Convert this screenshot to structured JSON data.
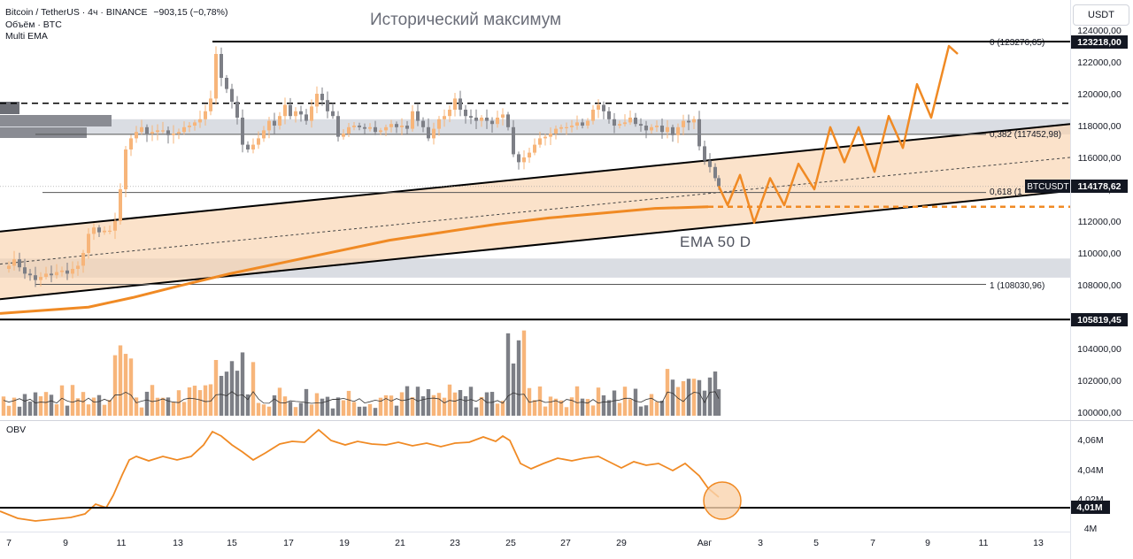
{
  "legend": {
    "symbol": "Bitcoin / TetherUS · 4ч · BINANCE",
    "change": "−903,15 (−0,78%)",
    "volume": "Объём · BTC",
    "ema": "Multi EMA"
  },
  "currency": "USDT",
  "annotations": {
    "title": "Исторический максимум",
    "ema": "EMA 50 D"
  },
  "fib": {
    "f0": "0 (123276,05)",
    "f382": "0,382 (117452,98)",
    "f618": "0,618 (1",
    "f1": "1 (108030,96)"
  },
  "price_tags": {
    "ath": "123218,00",
    "symbol": "BTCUSDT",
    "current": "114178,62",
    "low": "105819,45",
    "obv": "4,01M"
  },
  "obv_title": "OBV",
  "colors": {
    "bull": "#f7b57a",
    "bear": "#7d7f86",
    "ema": "#f08a24",
    "channel_fill": "#f9d3ae",
    "zone": "#d1d4dc",
    "line": "#000000",
    "obv": "#f08a24"
  },
  "chart_data": {
    "type": "candlestick",
    "price_axis": {
      "range": [
        100000,
        124000
      ],
      "ticks": [
        "124000,00",
        "122000,00",
        "120000,00",
        "118000,00",
        "116000,00",
        "114000,00",
        "112000,00",
        "110000,00",
        "108000,00",
        "104000,00",
        "102000,00",
        "100000,00"
      ]
    },
    "obv_axis": {
      "ticks": [
        "4,06M",
        "4,04M",
        "4,02M",
        "4M"
      ]
    },
    "time_axis": {
      "ticks": [
        "7",
        "9",
        "11",
        "13",
        "15",
        "17",
        "19",
        "21",
        "23",
        "25",
        "27",
        "29",
        "Авг",
        "3",
        "5",
        "7",
        "9",
        "11",
        "13"
      ]
    },
    "levels": {
      "ath": 123276,
      "resistance": 119400,
      "fib382": 117452.98,
      "fib618": 113800,
      "fib1": 108030.96,
      "support": 105819.45,
      "ema50d_projection": 112900
    },
    "ema50d": [
      [
        0,
        106200
      ],
      [
        100,
        106600
      ],
      [
        150,
        107200
      ],
      [
        200,
        107900
      ],
      [
        260,
        108700
      ],
      [
        320,
        109400
      ],
      [
        380,
        110100
      ],
      [
        440,
        110800
      ],
      [
        500,
        111300
      ],
      [
        560,
        111800
      ],
      [
        620,
        112200
      ],
      [
        680,
        112500
      ],
      [
        740,
        112800
      ],
      [
        800,
        112900
      ]
    ],
    "ohlc_path": [
      [
        4,
        109000
      ],
      [
        10,
        109200
      ],
      [
        16,
        109600
      ],
      [
        22,
        109100
      ],
      [
        28,
        108700
      ],
      [
        34,
        108600
      ],
      [
        40,
        108300
      ],
      [
        46,
        108500
      ],
      [
        52,
        108700
      ],
      [
        58,
        108600
      ],
      [
        64,
        108800
      ],
      [
        70,
        108900
      ],
      [
        76,
        108700
      ],
      [
        82,
        109000
      ],
      [
        88,
        109200
      ],
      [
        94,
        110000
      ],
      [
        100,
        111200
      ],
      [
        106,
        111600
      ],
      [
        112,
        111300
      ],
      [
        118,
        111400
      ],
      [
        124,
        111400
      ],
      [
        130,
        112000
      ],
      [
        136,
        114000
      ],
      [
        142,
        116500
      ],
      [
        148,
        117200
      ],
      [
        154,
        117600
      ],
      [
        160,
        117900
      ],
      [
        166,
        117500
      ],
      [
        172,
        117600
      ],
      [
        178,
        117700
      ],
      [
        184,
        117700
      ],
      [
        190,
        117400
      ],
      [
        196,
        117500
      ],
      [
        202,
        117600
      ],
      [
        208,
        117900
      ],
      [
        214,
        118000
      ],
      [
        220,
        118200
      ],
      [
        226,
        118400
      ],
      [
        232,
        118900
      ],
      [
        238,
        119700
      ],
      [
        244,
        122500
      ],
      [
        250,
        121000
      ],
      [
        256,
        120300
      ],
      [
        262,
        119500
      ],
      [
        268,
        118500
      ],
      [
        274,
        116800
      ],
      [
        280,
        116500
      ],
      [
        286,
        116800
      ],
      [
        292,
        117200
      ],
      [
        298,
        117700
      ],
      [
        304,
        118300
      ],
      [
        310,
        118000
      ],
      [
        316,
        118600
      ],
      [
        322,
        119300
      ],
      [
        328,
        118600
      ],
      [
        334,
        118900
      ],
      [
        340,
        118700
      ],
      [
        346,
        118300
      ],
      [
        352,
        119200
      ],
      [
        358,
        120000
      ],
      [
        364,
        119600
      ],
      [
        370,
        118900
      ],
      [
        376,
        118600
      ],
      [
        382,
        117300
      ],
      [
        388,
        117500
      ],
      [
        394,
        117900
      ],
      [
        400,
        118000
      ],
      [
        406,
        117900
      ],
      [
        412,
        117800
      ],
      [
        418,
        117900
      ],
      [
        424,
        117600
      ],
      [
        430,
        117700
      ],
      [
        436,
        117900
      ],
      [
        442,
        118100
      ],
      [
        448,
        117900
      ],
      [
        454,
        118000
      ],
      [
        460,
        117800
      ],
      [
        466,
        118900
      ],
      [
        472,
        118300
      ],
      [
        478,
        117900
      ],
      [
        484,
        117200
      ],
      [
        490,
        117800
      ],
      [
        496,
        118400
      ],
      [
        502,
        118600
      ],
      [
        508,
        119000
      ],
      [
        514,
        119700
      ],
      [
        520,
        119000
      ],
      [
        526,
        118600
      ],
      [
        532,
        118500
      ],
      [
        538,
        118300
      ],
      [
        544,
        118500
      ],
      [
        550,
        118300
      ],
      [
        556,
        118100
      ],
      [
        562,
        118500
      ],
      [
        568,
        118700
      ],
      [
        574,
        117900
      ],
      [
        580,
        116200
      ],
      [
        586,
        115700
      ],
      [
        592,
        116000
      ],
      [
        598,
        116300
      ],
      [
        604,
        116800
      ],
      [
        610,
        117200
      ],
      [
        616,
        117300
      ],
      [
        622,
        117500
      ],
      [
        628,
        117800
      ],
      [
        634,
        117900
      ],
      [
        640,
        117900
      ],
      [
        646,
        118000
      ],
      [
        652,
        118200
      ],
      [
        658,
        118000
      ],
      [
        664,
        118300
      ],
      [
        670,
        119000
      ],
      [
        676,
        119300
      ],
      [
        682,
        118900
      ],
      [
        688,
        118400
      ],
      [
        694,
        118000
      ],
      [
        700,
        118100
      ],
      [
        706,
        118200
      ],
      [
        712,
        118500
      ],
      [
        718,
        118100
      ],
      [
        724,
        118000
      ],
      [
        730,
        117700
      ],
      [
        736,
        117900
      ],
      [
        742,
        118000
      ],
      [
        748,
        117600
      ],
      [
        754,
        117900
      ],
      [
        760,
        117400
      ],
      [
        766,
        117900
      ],
      [
        772,
        118300
      ],
      [
        778,
        118200
      ],
      [
        784,
        118400
      ],
      [
        790,
        116700
      ],
      [
        796,
        115800
      ],
      [
        802,
        115400
      ],
      [
        808,
        114700
      ],
      [
        812,
        114200
      ]
    ],
    "projection": [
      [
        812,
        114200
      ],
      [
        822,
        113000
      ],
      [
        836,
        114900
      ],
      [
        852,
        111900
      ],
      [
        870,
        114700
      ],
      [
        886,
        113000
      ],
      [
        902,
        115600
      ],
      [
        920,
        114000
      ],
      [
        938,
        117900
      ],
      [
        954,
        115700
      ],
      [
        970,
        117900
      ],
      [
        988,
        115100
      ],
      [
        1004,
        118600
      ],
      [
        1020,
        116600
      ],
      [
        1036,
        120600
      ],
      [
        1052,
        118500
      ],
      [
        1072,
        123000
      ],
      [
        1082,
        122500
      ]
    ],
    "volume_baseline": 100000
  }
}
